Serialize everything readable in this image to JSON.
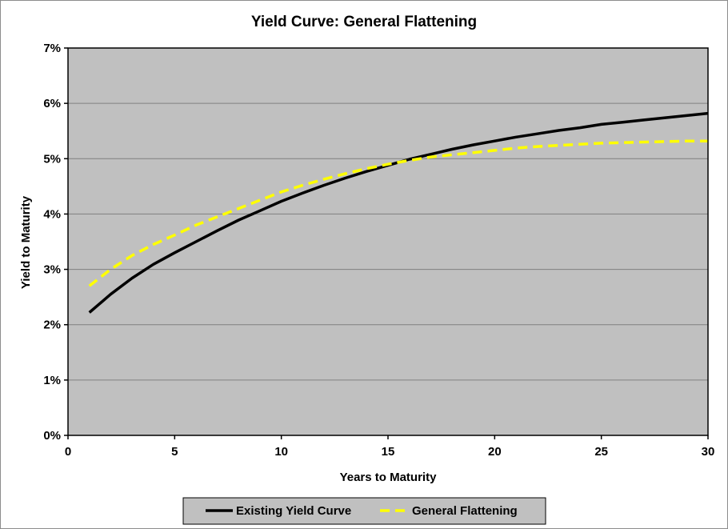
{
  "chart_data": {
    "type": "line",
    "title": "Yield Curve: General Flattening",
    "xlabel": "Years to Maturity",
    "ylabel": "Yield to Maturity",
    "xlim": [
      0,
      30
    ],
    "ylim": [
      0,
      7
    ],
    "x_ticks": [
      0,
      5,
      10,
      15,
      20,
      25,
      30
    ],
    "x_tick_labels": [
      "0",
      "5",
      "10",
      "15",
      "20",
      "25",
      "30"
    ],
    "y_ticks": [
      0,
      1,
      2,
      3,
      4,
      5,
      6,
      7
    ],
    "y_tick_labels": [
      "0%",
      "1%",
      "2%",
      "3%",
      "4%",
      "5%",
      "6%",
      "7%"
    ],
    "grid": "horizontal",
    "plot_background": "#c0c0c0",
    "legend_position": "bottom",
    "series": [
      {
        "name": "Existing Yield Curve",
        "color": "#000000",
        "style": "solid",
        "x": [
          1,
          2,
          3,
          4,
          5,
          6,
          7,
          8,
          9,
          10,
          11,
          12,
          13,
          14,
          15,
          16,
          17,
          18,
          19,
          20,
          21,
          22,
          23,
          24,
          25,
          26,
          27,
          28,
          29,
          30
        ],
        "y": [
          2.22,
          2.55,
          2.84,
          3.09,
          3.3,
          3.5,
          3.7,
          3.89,
          4.06,
          4.23,
          4.38,
          4.52,
          4.65,
          4.77,
          4.88,
          4.99,
          5.08,
          5.17,
          5.25,
          5.32,
          5.39,
          5.45,
          5.51,
          5.56,
          5.62,
          5.66,
          5.7,
          5.74,
          5.78,
          5.82
        ]
      },
      {
        "name": "General Flattening",
        "color": "#ffff00",
        "style": "dashed",
        "x": [
          1,
          2,
          3,
          4,
          5,
          6,
          7,
          8,
          9,
          10,
          11,
          12,
          13,
          14,
          15,
          16,
          17,
          18,
          19,
          20,
          21,
          22,
          23,
          24,
          25,
          26,
          27,
          28,
          29,
          30
        ],
        "y": [
          2.7,
          3.0,
          3.25,
          3.45,
          3.62,
          3.8,
          3.95,
          4.1,
          4.25,
          4.4,
          4.52,
          4.63,
          4.73,
          4.82,
          4.9,
          4.97,
          5.03,
          5.07,
          5.11,
          5.15,
          5.19,
          5.22,
          5.24,
          5.26,
          5.28,
          5.29,
          5.3,
          5.31,
          5.32,
          5.32
        ]
      }
    ]
  }
}
